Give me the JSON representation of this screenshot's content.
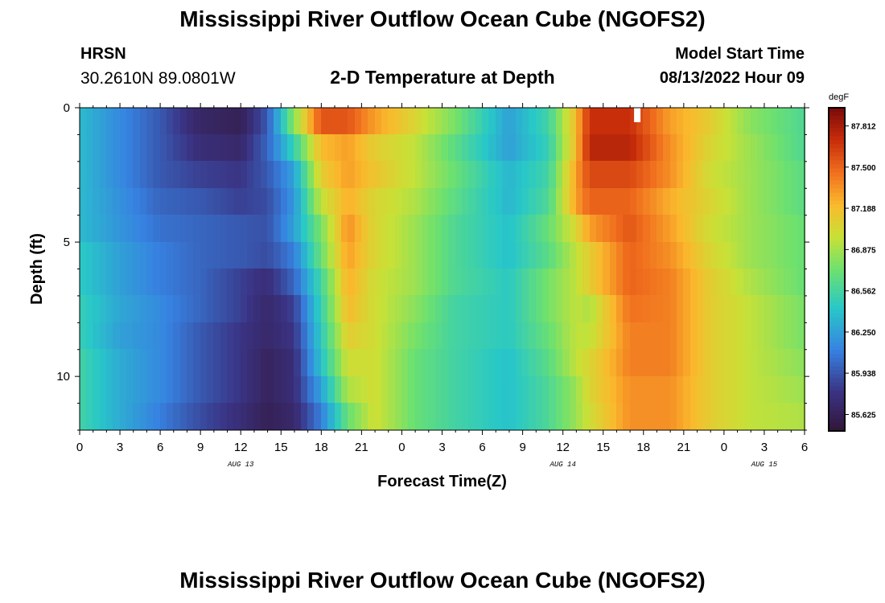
{
  "header": {
    "title": "Mississippi River Outflow Ocean Cube (NGOFS2)",
    "station_name": "HRSN",
    "station_coords": "30.2610N  89.0801W",
    "subtitle": "2-D Temperature at Depth",
    "start_label": "Model Start Time",
    "start_value": "08/13/2022 Hour 09"
  },
  "footer": {
    "title": "Mississippi River Outflow Ocean Cube (NGOFS2)"
  },
  "chart_data": {
    "type": "heatmap",
    "title": "2-D Temperature at Depth",
    "xlabel": "Forecast Time(Z)",
    "ylabel": "Depth (ft)",
    "x_range_hours": [
      0,
      54
    ],
    "x_tick_labels": [
      "0",
      "3",
      "6",
      "9",
      "12",
      "15",
      "18",
      "21",
      "0",
      "3",
      "6",
      "9",
      "12",
      "15",
      "18",
      "21",
      "0",
      "3",
      "6"
    ],
    "x_date_labels": [
      {
        "label": "AUG 13",
        "hour": 12
      },
      {
        "label": "AUG 14",
        "hour": 36
      },
      {
        "label": "AUG 15",
        "hour": 51
      }
    ],
    "y_range": [
      0,
      12
    ],
    "y_ticks": [
      0,
      5,
      10
    ],
    "colorbar": {
      "unit": "degF",
      "range": [
        85.5,
        87.95
      ],
      "tick_labels": [
        "87.812",
        "87.500",
        "87.188",
        "86.875",
        "86.562",
        "86.250",
        "85.938",
        "85.625"
      ]
    },
    "depth_levels_ft": [
      0,
      1,
      2,
      3,
      4,
      5,
      6,
      7,
      8,
      9,
      10,
      11
    ],
    "control_hours": [
      0,
      3,
      6,
      9,
      12,
      14,
      16,
      18,
      20,
      22,
      25,
      28,
      32,
      35,
      37,
      38,
      41,
      44,
      47,
      50,
      54
    ],
    "control_values": [
      [
        86.37,
        86.15,
        85.95,
        85.68,
        85.62,
        85.95,
        86.8,
        87.55,
        87.55,
        87.3,
        87.05,
        86.75,
        86.25,
        86.55,
        87.2,
        87.7,
        87.7,
        87.3,
        87.1,
        86.8,
        86.6
      ],
      [
        86.37,
        86.15,
        85.95,
        85.75,
        85.7,
        86.0,
        86.5,
        87.2,
        87.3,
        87.1,
        86.95,
        86.65,
        86.25,
        86.5,
        87.2,
        87.75,
        87.75,
        87.35,
        87.05,
        86.85,
        86.6
      ],
      [
        86.37,
        86.15,
        85.95,
        85.85,
        85.8,
        85.95,
        86.25,
        87.1,
        87.3,
        87.15,
        86.95,
        86.7,
        86.35,
        86.55,
        87.3,
        87.6,
        87.6,
        87.35,
        87.0,
        86.85,
        86.65
      ],
      [
        86.37,
        86.18,
        86.0,
        85.95,
        85.85,
        85.9,
        86.2,
        86.95,
        87.25,
        87.05,
        86.9,
        86.65,
        86.35,
        86.6,
        87.3,
        87.5,
        87.5,
        87.25,
        87.05,
        86.85,
        86.65
      ],
      [
        86.37,
        86.2,
        86.05,
        86.0,
        85.95,
        85.92,
        86.25,
        86.75,
        87.35,
        87.05,
        86.85,
        86.6,
        86.4,
        86.7,
        87.05,
        87.3,
        87.55,
        87.3,
        87.0,
        86.85,
        86.7
      ],
      [
        86.45,
        86.25,
        86.1,
        86.0,
        85.95,
        85.9,
        86.1,
        86.7,
        87.3,
        87.05,
        86.85,
        86.6,
        86.4,
        86.65,
        86.95,
        87.1,
        87.5,
        87.35,
        87.05,
        86.85,
        86.7
      ],
      [
        86.45,
        86.25,
        86.1,
        86.0,
        85.85,
        85.75,
        86.0,
        86.55,
        87.25,
        87.0,
        86.85,
        86.6,
        86.45,
        86.75,
        86.95,
        87.1,
        87.5,
        87.4,
        87.1,
        86.9,
        86.7
      ],
      [
        86.5,
        86.28,
        86.15,
        86.0,
        85.85,
        85.7,
        85.85,
        86.5,
        87.2,
        87.0,
        86.8,
        86.55,
        86.45,
        86.75,
        86.95,
        86.9,
        87.45,
        87.4,
        87.1,
        86.95,
        86.75
      ],
      [
        86.5,
        86.25,
        86.15,
        85.95,
        85.8,
        85.7,
        85.8,
        86.45,
        87.1,
        87.0,
        86.75,
        86.55,
        86.45,
        86.7,
        86.95,
        86.95,
        87.4,
        87.4,
        87.1,
        86.95,
        86.75
      ],
      [
        86.55,
        86.3,
        86.15,
        85.95,
        85.8,
        85.65,
        85.75,
        86.4,
        87.0,
        87.0,
        86.7,
        86.55,
        86.4,
        86.65,
        86.95,
        87.05,
        87.4,
        87.4,
        87.1,
        86.95,
        86.8
      ],
      [
        86.55,
        86.3,
        86.15,
        85.95,
        85.8,
        85.65,
        85.75,
        86.25,
        86.9,
        87.0,
        86.7,
        86.55,
        86.4,
        86.6,
        86.85,
        87.05,
        87.35,
        87.35,
        87.1,
        86.95,
        86.85
      ],
      [
        86.55,
        86.3,
        86.1,
        85.9,
        85.75,
        85.62,
        85.7,
        86.1,
        86.7,
        87.0,
        86.7,
        86.55,
        86.4,
        86.6,
        86.85,
        87.0,
        87.35,
        87.35,
        87.1,
        86.95,
        86.9
      ]
    ]
  }
}
